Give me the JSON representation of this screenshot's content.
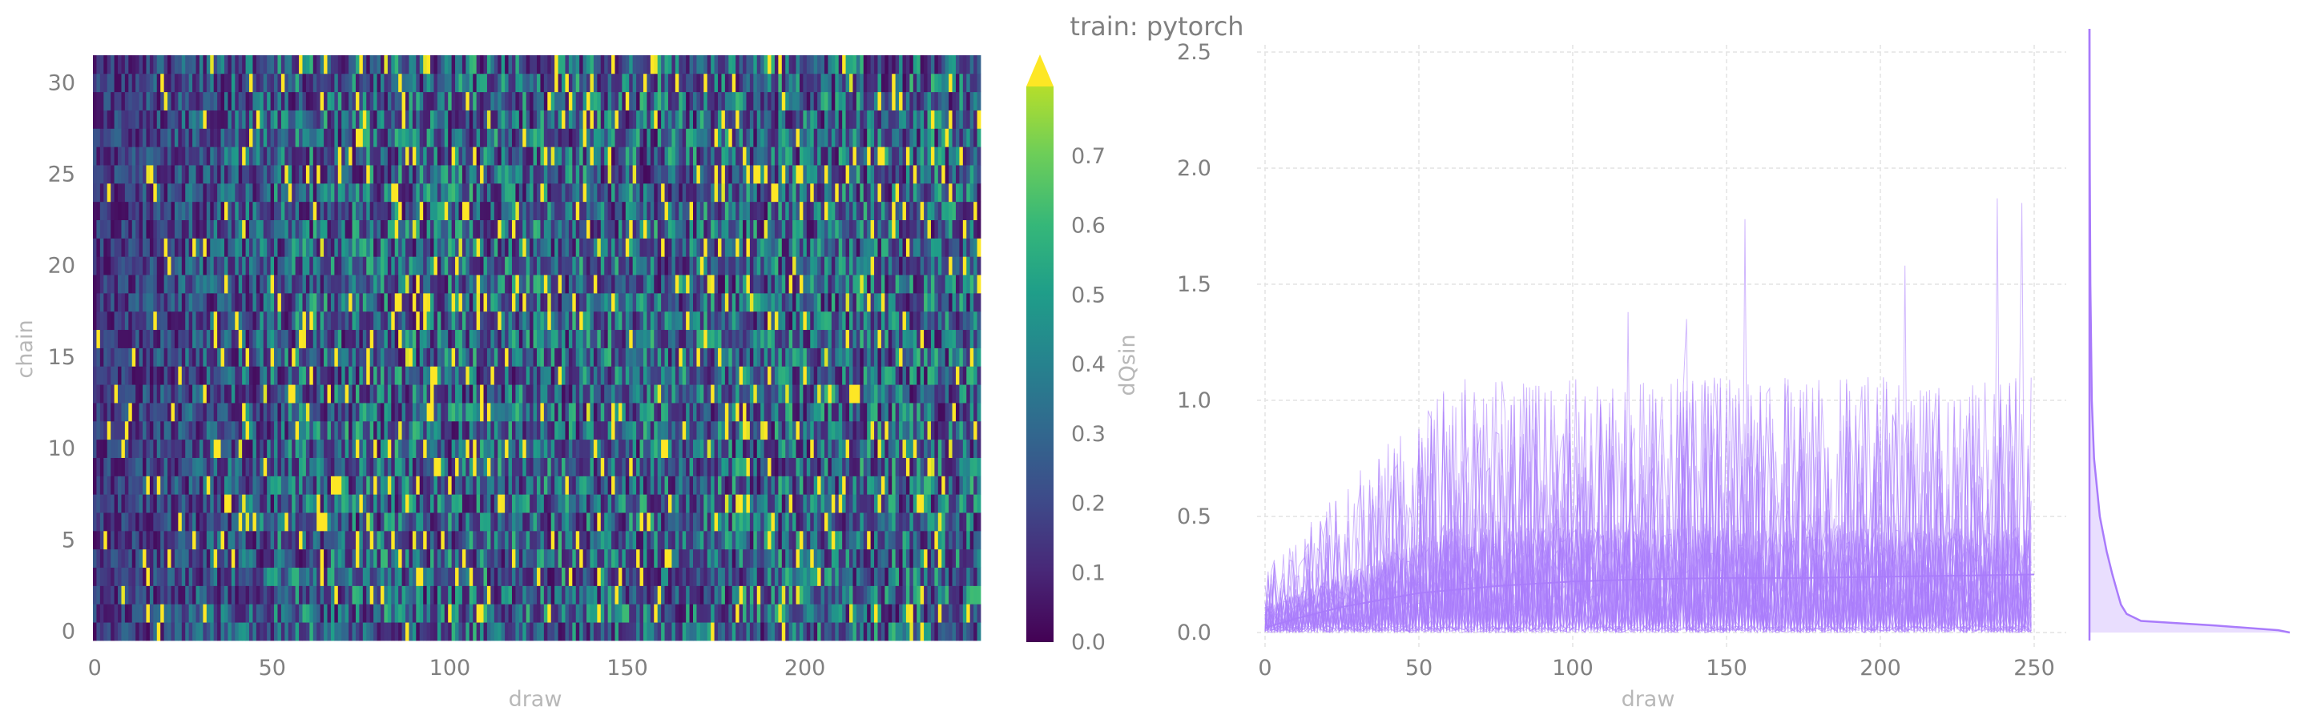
{
  "title": "train: pytorch",
  "colors": {
    "heat_low": "#440154",
    "heat_high": "#fde725",
    "trace": "#a97bfb",
    "text": "#808080",
    "axis_label": "#b8b8b8",
    "grid": "#e4e4e4"
  },
  "chart_data": [
    {
      "type": "heatmap",
      "xlabel": "draw",
      "ylabel": "chain",
      "xlim": [
        0,
        249
      ],
      "ylim": [
        0,
        31
      ],
      "x_ticks": [
        "0",
        "50",
        "100",
        "150",
        "200"
      ],
      "y_ticks": [
        "0",
        "5",
        "10",
        "15",
        "20",
        "25",
        "30"
      ],
      "colorbar": {
        "label": "dQsin",
        "range": [
          0.0,
          0.8
        ],
        "extend": "max",
        "ticks": [
          "0.0",
          "0.1",
          "0.2",
          "0.3",
          "0.4",
          "0.5",
          "0.6",
          "0.7"
        ],
        "colormap": "viridis"
      },
      "n_draws": 250,
      "n_chains": 32,
      "note_values": "dQsin per chain and draw; mostly 0.0–0.3, frequent spikes up to 0.8+"
    },
    {
      "type": "line",
      "xlabel": "draw",
      "ylabel": "",
      "xlim": [
        0,
        250
      ],
      "ylim": [
        0.0,
        2.6
      ],
      "x_ticks": [
        "0",
        "50",
        "100",
        "150",
        "200",
        "250"
      ],
      "y_ticks": [
        "0.0",
        "0.5",
        "1.0",
        "1.5",
        "2.0",
        "2.5"
      ],
      "grid": true,
      "n_traces": 32,
      "mean_curve": {
        "x": [
          0,
          10,
          25,
          50,
          75,
          100,
          125,
          150,
          175,
          200,
          225,
          250
        ],
        "y": [
          0.02,
          0.06,
          0.11,
          0.17,
          0.2,
          0.22,
          0.23,
          0.235,
          0.235,
          0.24,
          0.245,
          0.25
        ]
      },
      "peaks": [
        {
          "x": 156,
          "y": 1.78
        },
        {
          "x": 238,
          "y": 1.87
        },
        {
          "x": 246,
          "y": 1.85
        },
        {
          "x": 208,
          "y": 1.58
        },
        {
          "x": 118,
          "y": 1.38
        },
        {
          "x": 137,
          "y": 1.35
        }
      ],
      "marginal_density": {
        "y": [
          0.0,
          0.01,
          0.03,
          0.05,
          0.08,
          0.12,
          0.18,
          0.25,
          0.35,
          0.5,
          0.75,
          1.0,
          1.5,
          2.0,
          2.6
        ],
        "density": [
          3.5,
          3.3,
          2.2,
          0.9,
          0.65,
          0.55,
          0.48,
          0.4,
          0.3,
          0.18,
          0.08,
          0.04,
          0.015,
          0.005,
          0.0
        ]
      }
    }
  ]
}
